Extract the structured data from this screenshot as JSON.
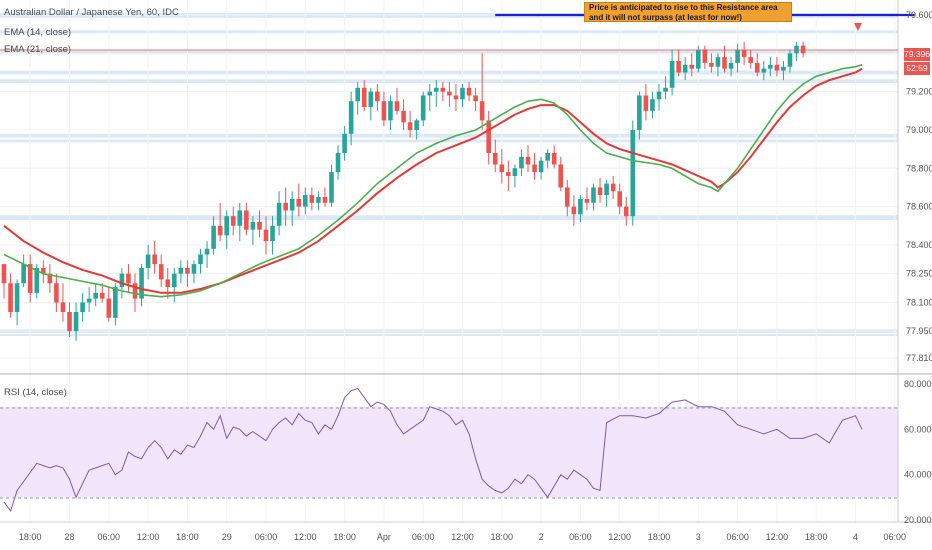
{
  "legend": {
    "symbol": "Australian Dollar / Japanese Yen, 60, IDC",
    "ema14": "EMA (14, close)",
    "ema21": "EMA (21, close)",
    "rsi": "RSI (14, close)"
  },
  "annotation": {
    "text": "Price is anticipated to rise to this Resistance area and it will not surpass (at least for now!)"
  },
  "price_tags": {
    "last": "79.396",
    "countdown": "52:59"
  },
  "colors": {
    "bull": "#26a69a",
    "bear": "#ef5350",
    "ema14": "#4caf50",
    "ema21": "#e53935",
    "rsi": "#7e57c2",
    "rsi_band": "#f3e5fc",
    "zone": "#cfe2f3",
    "resistance_line": "#1e22d4",
    "note_bg": "#f0a030"
  },
  "chart_data": {
    "type": "candlestick",
    "price_axis": {
      "ticks": [
        79.6,
        79.396,
        79.2,
        79.0,
        78.8,
        78.6,
        78.4,
        78.25,
        78.1,
        77.95,
        77.81
      ],
      "tick_labels": [
        "79.600",
        "79.396",
        "79.200",
        "79.000",
        "78.800",
        "78.600",
        "78.400",
        "78.250",
        "78.100",
        "77.950",
        "77.810"
      ]
    },
    "rsi_axis": {
      "ticks": [
        80,
        60,
        40,
        20
      ],
      "tick_labels": [
        "80.0000",
        "60.0000",
        "40.0000",
        "20.0000"
      ],
      "band": [
        30,
        70
      ]
    },
    "time_axis": {
      "labels": [
        "18:00",
        "28",
        "06:00",
        "12:00",
        "18:00",
        "29",
        "06:00",
        "12:00",
        "18:00",
        "Apr",
        "06:00",
        "12:00",
        "18:00",
        "2",
        "06:00",
        "12:00",
        "18:00",
        "3",
        "06:00",
        "12:00",
        "18:00",
        "4",
        "06:00"
      ],
      "bar_index": [
        4,
        10,
        16,
        22,
        28,
        34,
        40,
        46,
        52,
        58,
        64,
        70,
        76,
        82,
        88,
        94,
        100,
        106,
        112,
        118,
        124,
        130,
        136
      ]
    },
    "resistance_line": {
      "price": 79.6,
      "from_bar": 75,
      "to_bar": 139
    },
    "zones": [
      [
        79.585,
        79.61
      ],
      [
        79.505,
        79.52
      ],
      [
        79.4,
        79.42
      ],
      [
        79.29,
        79.31
      ],
      [
        79.245,
        79.265
      ],
      [
        78.96,
        78.98
      ],
      [
        78.935,
        78.95
      ],
      [
        78.53,
        78.555
      ],
      [
        77.94,
        77.96
      ],
      [
        77.925,
        77.935
      ]
    ],
    "candles": [
      [
        78.3,
        78.3,
        78.12,
        78.2
      ],
      [
        78.2,
        78.25,
        78.02,
        78.05
      ],
      [
        78.05,
        78.22,
        77.98,
        78.2
      ],
      [
        78.2,
        78.35,
        78.18,
        78.3
      ],
      [
        78.3,
        78.35,
        78.1,
        78.15
      ],
      [
        78.15,
        78.3,
        78.12,
        78.28
      ],
      [
        78.28,
        78.32,
        78.2,
        78.25
      ],
      [
        78.25,
        78.3,
        78.15,
        78.2
      ],
      [
        78.2,
        78.25,
        78.05,
        78.1
      ],
      [
        78.1,
        78.2,
        78.0,
        78.05
      ],
      [
        78.05,
        78.1,
        77.92,
        77.95
      ],
      [
        77.95,
        78.1,
        77.9,
        78.05
      ],
      [
        78.05,
        78.15,
        78.0,
        78.1
      ],
      [
        78.1,
        78.18,
        78.05,
        78.12
      ],
      [
        78.12,
        78.2,
        78.08,
        78.15
      ],
      [
        78.15,
        78.2,
        78.1,
        78.12
      ],
      [
        78.12,
        78.18,
        78.0,
        78.02
      ],
      [
        78.02,
        78.2,
        77.98,
        78.18
      ],
      [
        78.18,
        78.28,
        78.12,
        78.25
      ],
      [
        78.25,
        78.3,
        78.15,
        78.2
      ],
      [
        78.2,
        78.25,
        78.05,
        78.12
      ],
      [
        78.12,
        78.3,
        78.08,
        78.28
      ],
      [
        78.28,
        78.4,
        78.22,
        78.35
      ],
      [
        78.35,
        78.42,
        78.25,
        78.3
      ],
      [
        78.3,
        78.35,
        78.18,
        78.22
      ],
      [
        78.22,
        78.28,
        78.12,
        78.18
      ],
      [
        78.18,
        78.28,
        78.1,
        78.25
      ],
      [
        78.25,
        78.32,
        78.2,
        78.28
      ],
      [
        78.28,
        78.32,
        78.18,
        78.25
      ],
      [
        78.25,
        78.32,
        78.2,
        78.3
      ],
      [
        78.3,
        78.38,
        78.25,
        78.35
      ],
      [
        78.35,
        78.42,
        78.28,
        78.38
      ],
      [
        78.38,
        78.55,
        78.35,
        78.5
      ],
      [
        78.5,
        78.62,
        78.42,
        78.45
      ],
      [
        78.45,
        78.58,
        78.38,
        78.55
      ],
      [
        78.55,
        78.6,
        78.45,
        78.5
      ],
      [
        78.5,
        78.62,
        78.42,
        78.58
      ],
      [
        78.58,
        78.62,
        78.45,
        78.48
      ],
      [
        78.48,
        78.55,
        78.4,
        78.52
      ],
      [
        78.52,
        78.58,
        78.44,
        78.48
      ],
      [
        78.48,
        78.55,
        78.35,
        78.42
      ],
      [
        78.42,
        78.55,
        78.35,
        78.5
      ],
      [
        78.5,
        78.68,
        78.45,
        78.62
      ],
      [
        78.62,
        78.7,
        78.5,
        78.58
      ],
      [
        78.58,
        78.68,
        78.5,
        78.64
      ],
      [
        78.64,
        78.72,
        78.55,
        78.6
      ],
      [
        78.6,
        78.7,
        78.56,
        78.66
      ],
      [
        78.66,
        78.7,
        78.58,
        78.62
      ],
      [
        78.62,
        78.68,
        78.58,
        78.65
      ],
      [
        78.65,
        78.7,
        78.6,
        78.62
      ],
      [
        78.62,
        78.82,
        78.6,
        78.78
      ],
      [
        78.78,
        78.92,
        78.74,
        78.88
      ],
      [
        78.88,
        79.02,
        78.84,
        78.98
      ],
      [
        78.98,
        79.2,
        78.92,
        79.15
      ],
      [
        79.15,
        79.25,
        79.08,
        79.22
      ],
      [
        79.22,
        79.26,
        79.1,
        79.12
      ],
      [
        79.12,
        79.22,
        79.05,
        79.2
      ],
      [
        79.2,
        79.24,
        79.1,
        79.15
      ],
      [
        79.15,
        79.2,
        79.02,
        79.05
      ],
      [
        79.05,
        79.18,
        79.0,
        79.15
      ],
      [
        79.15,
        79.22,
        79.08,
        79.1
      ],
      [
        79.1,
        79.16,
        79.0,
        79.04
      ],
      [
        79.04,
        79.1,
        78.96,
        79.0
      ],
      [
        79.0,
        79.06,
        78.95,
        79.05
      ],
      [
        79.05,
        79.2,
        79.02,
        79.18
      ],
      [
        79.18,
        79.24,
        79.1,
        79.2
      ],
      [
        79.2,
        79.26,
        79.12,
        79.22
      ],
      [
        79.22,
        79.25,
        79.15,
        79.2
      ],
      [
        79.2,
        79.25,
        79.12,
        79.18
      ],
      [
        79.18,
        79.24,
        79.1,
        79.16
      ],
      [
        79.16,
        79.24,
        79.12,
        79.22
      ],
      [
        79.22,
        79.25,
        79.15,
        79.18
      ],
      [
        79.18,
        79.22,
        79.1,
        79.15
      ],
      [
        79.15,
        79.4,
        79.0,
        79.05
      ],
      [
        79.05,
        79.1,
        78.82,
        78.88
      ],
      [
        78.88,
        78.95,
        78.78,
        78.82
      ],
      [
        78.82,
        78.9,
        78.72,
        78.78
      ],
      [
        78.78,
        78.84,
        78.68,
        78.76
      ],
      [
        78.76,
        78.82,
        78.7,
        78.8
      ],
      [
        78.8,
        78.9,
        78.76,
        78.86
      ],
      [
        78.86,
        78.92,
        78.78,
        78.82
      ],
      [
        78.82,
        78.88,
        78.74,
        78.78
      ],
      [
        78.78,
        78.86,
        78.74,
        78.84
      ],
      [
        78.84,
        78.9,
        78.8,
        78.88
      ],
      [
        78.88,
        78.92,
        78.8,
        78.82
      ],
      [
        78.82,
        78.86,
        78.68,
        78.7
      ],
      [
        78.7,
        78.74,
        78.55,
        78.6
      ],
      [
        78.6,
        78.66,
        78.5,
        78.56
      ],
      [
        78.56,
        78.66,
        78.52,
        78.64
      ],
      [
        78.64,
        78.7,
        78.58,
        78.62
      ],
      [
        78.62,
        78.72,
        78.58,
        78.7
      ],
      [
        78.7,
        78.75,
        78.62,
        78.66
      ],
      [
        78.66,
        78.74,
        78.6,
        78.72
      ],
      [
        78.72,
        78.76,
        78.64,
        78.68
      ],
      [
        78.68,
        78.72,
        78.56,
        78.6
      ],
      [
        78.6,
        78.65,
        78.5,
        78.55
      ],
      [
        78.55,
        79.05,
        78.5,
        79.0
      ],
      [
        79.0,
        79.2,
        78.95,
        79.18
      ],
      [
        79.18,
        79.24,
        79.05,
        79.1
      ],
      [
        79.1,
        79.2,
        79.06,
        79.16
      ],
      [
        79.16,
        79.24,
        79.1,
        79.2
      ],
      [
        79.2,
        79.28,
        79.16,
        79.22
      ],
      [
        79.22,
        79.42,
        79.18,
        79.36
      ],
      [
        79.36,
        79.42,
        79.28,
        79.3
      ],
      [
        79.3,
        79.38,
        79.26,
        79.34
      ],
      [
        79.34,
        79.4,
        79.28,
        79.32
      ],
      [
        79.32,
        79.44,
        79.3,
        79.42
      ],
      [
        79.42,
        79.44,
        79.32,
        79.35
      ],
      [
        79.35,
        79.4,
        79.3,
        79.33
      ],
      [
        79.33,
        79.4,
        79.28,
        79.38
      ],
      [
        79.38,
        79.44,
        79.3,
        79.32
      ],
      [
        79.32,
        79.38,
        79.28,
        79.35
      ],
      [
        79.35,
        79.45,
        79.3,
        79.42
      ],
      [
        79.42,
        79.46,
        79.34,
        79.38
      ],
      [
        79.38,
        79.42,
        79.32,
        79.35
      ],
      [
        79.35,
        79.4,
        79.28,
        79.3
      ],
      [
        79.3,
        79.36,
        79.26,
        79.32
      ],
      [
        79.32,
        79.38,
        79.28,
        79.34
      ],
      [
        79.34,
        79.38,
        79.28,
        79.31
      ],
      [
        79.31,
        79.36,
        79.26,
        79.33
      ],
      [
        79.33,
        79.42,
        79.3,
        79.4
      ],
      [
        79.4,
        79.46,
        79.36,
        79.44
      ],
      [
        79.44,
        79.46,
        79.38,
        79.4
      ]
    ],
    "ema14": [
      78.35,
      78.3,
      78.25,
      78.23,
      78.21,
      78.19,
      78.16,
      78.14,
      78.13,
      78.14,
      78.16,
      78.2,
      78.25,
      78.3,
      78.34,
      78.38,
      78.45,
      78.53,
      78.62,
      78.72,
      78.8,
      78.88,
      78.93,
      78.97,
      79.0,
      79.04,
      79.08,
      79.12,
      79.15,
      79.16,
      79.14,
      79.08,
      79.0,
      78.93,
      78.88,
      78.86,
      78.84,
      78.83,
      78.82,
      78.8,
      78.76,
      78.72,
      78.7,
      78.68,
      78.72,
      78.8,
      78.9,
      79.0,
      79.1,
      79.18,
      79.24,
      79.28,
      79.3,
      79.32,
      79.33,
      79.34
    ],
    "ema14_bar": [
      0,
      3,
      6,
      9,
      12,
      15,
      18,
      21,
      24,
      27,
      30,
      33,
      36,
      39,
      42,
      45,
      48,
      51,
      54,
      57,
      60,
      63,
      66,
      69,
      72,
      74,
      76,
      78,
      80,
      82,
      84,
      86,
      88,
      90,
      92,
      94,
      96,
      98,
      100,
      102,
      104,
      106,
      108,
      109,
      110,
      112,
      114,
      116,
      118,
      120,
      122,
      124,
      126,
      128,
      130,
      131
    ],
    "ema21": [
      78.5,
      78.42,
      78.36,
      78.31,
      78.27,
      78.24,
      78.2,
      78.17,
      78.15,
      78.15,
      78.17,
      78.2,
      78.24,
      78.28,
      78.32,
      78.36,
      78.42,
      78.5,
      78.58,
      78.67,
      78.75,
      78.82,
      78.88,
      78.92,
      78.96,
      79.0,
      79.04,
      79.08,
      79.11,
      79.13,
      79.13,
      79.1,
      79.04,
      78.98,
      78.93,
      78.9,
      78.88,
      78.86,
      78.84,
      78.82,
      78.79,
      78.76,
      78.73,
      78.7,
      78.72,
      78.78,
      78.86,
      78.95,
      79.04,
      79.12,
      79.18,
      79.23,
      79.26,
      79.28,
      79.3,
      79.32
    ],
    "ema21_bar": [
      0,
      3,
      6,
      9,
      12,
      15,
      18,
      21,
      24,
      27,
      30,
      33,
      36,
      39,
      42,
      45,
      48,
      51,
      54,
      57,
      60,
      63,
      66,
      69,
      72,
      74,
      76,
      78,
      80,
      82,
      84,
      86,
      88,
      90,
      92,
      94,
      96,
      98,
      100,
      102,
      104,
      106,
      108,
      109,
      110,
      112,
      114,
      116,
      118,
      120,
      122,
      124,
      126,
      128,
      130,
      131
    ],
    "rsi": [
      28,
      24,
      33,
      37,
      45,
      44,
      43,
      44,
      43,
      38,
      30,
      36,
      42,
      43,
      44,
      45,
      40,
      42,
      50,
      48,
      47,
      52,
      55,
      52,
      47,
      51,
      49,
      53,
      52,
      57,
      63,
      60,
      66,
      56,
      61,
      60,
      57,
      59,
      57,
      55,
      60,
      63,
      65,
      62,
      67,
      64,
      63,
      58,
      62,
      60,
      66,
      74,
      77,
      78,
      74,
      70,
      72,
      71,
      68,
      62,
      58,
      60,
      62,
      64,
      70,
      69,
      68,
      66,
      62,
      64,
      58,
      47,
      38,
      35,
      33,
      32,
      34,
      38,
      36,
      40,
      38,
      34,
      30,
      35,
      40,
      38,
      42,
      40,
      38,
      34,
      33,
      63,
      66,
      66,
      65,
      67,
      72,
      73,
      70,
      70,
      68,
      62,
      60,
      58,
      60,
      56,
      56,
      58,
      54,
      64,
      66,
      60
    ],
    "rsi_bar": [
      0,
      1,
      2,
      3,
      5,
      6,
      7,
      8,
      9,
      10,
      11,
      12,
      13,
      14,
      15,
      16,
      17,
      18,
      19,
      20,
      21,
      22,
      23,
      24,
      25,
      26,
      27,
      28,
      29,
      30,
      31,
      32,
      33,
      34,
      35,
      36,
      37,
      38,
      39,
      40,
      41,
      42,
      43,
      44,
      45,
      46,
      47,
      48,
      49,
      50,
      51,
      52,
      53,
      54,
      55,
      56,
      57,
      58,
      59,
      60,
      61,
      62,
      63,
      64,
      65,
      66,
      67,
      68,
      69,
      70,
      71,
      72,
      73,
      74,
      75,
      76,
      77,
      78,
      79,
      80,
      81,
      82,
      83,
      84,
      85,
      86,
      87,
      88,
      89,
      90,
      91,
      92,
      94,
      96,
      98,
      100,
      102,
      104,
      106,
      108,
      110,
      112,
      114,
      116,
      118,
      120,
      122,
      124,
      126,
      128,
      130,
      131
    ]
  }
}
